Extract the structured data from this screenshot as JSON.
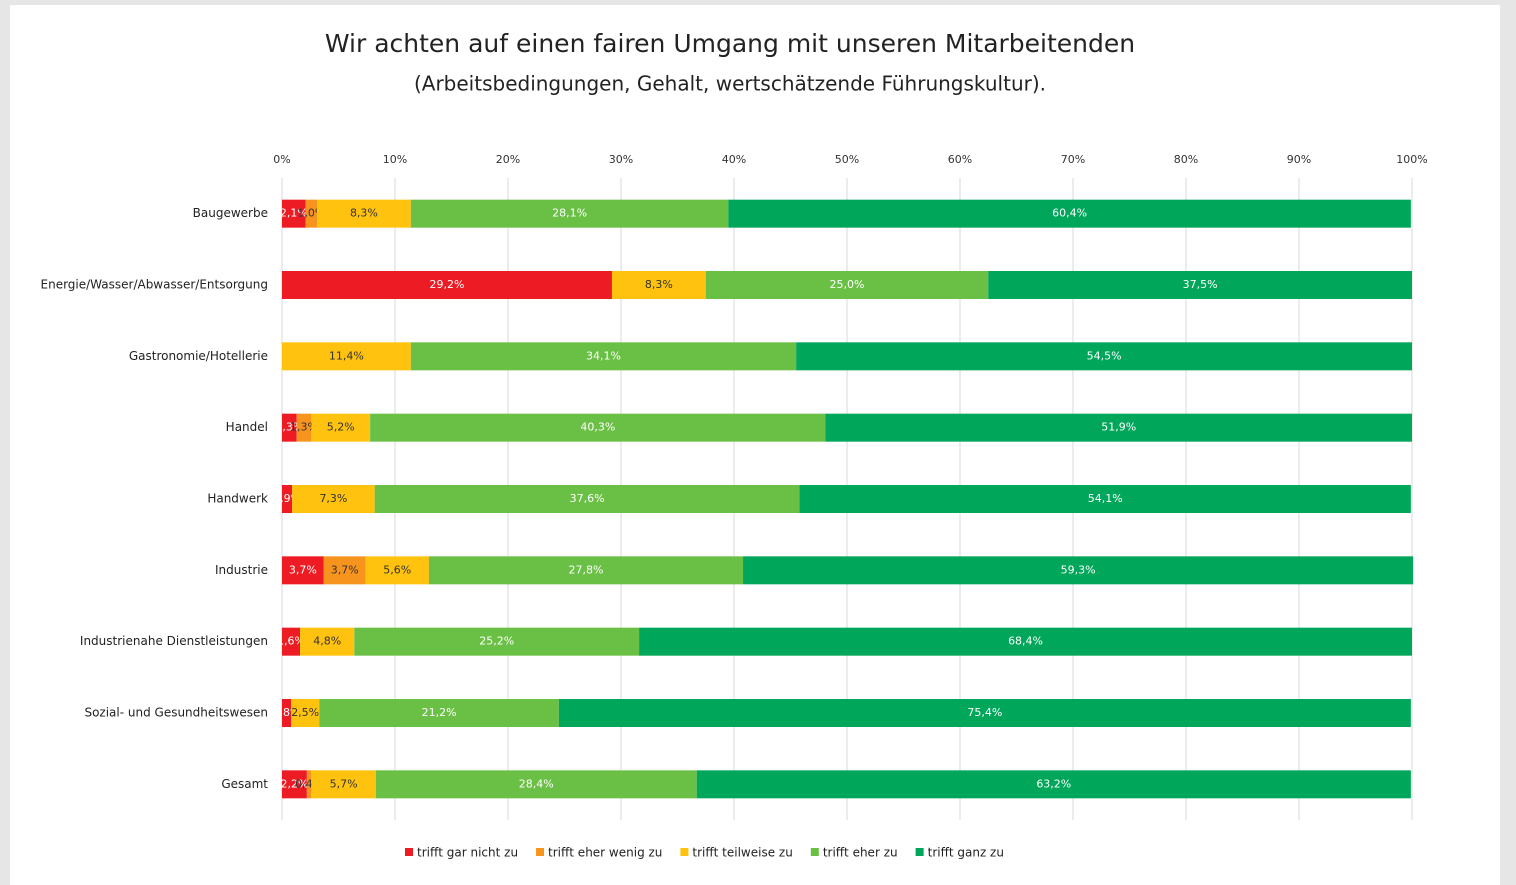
{
  "chart_data": {
    "type": "stacked-bar-horizontal",
    "title": "Wir achten auf einen fairen Umgang mit unseren Mitarbeitenden",
    "subtitle": "(Arbeitsbedingungen, Gehalt, wertschätzende Führungskultur).",
    "categories": [
      "Baugewerbe",
      "Energie/Wasser/Abwasser/Entsorgung",
      "Gastronomie/Hotellerie",
      "Handel",
      "Handwerk",
      "Industrie",
      "Industrienahe Dienstleistungen",
      "Sozial- und Gesundheitswesen",
      "Gesamt"
    ],
    "series": [
      {
        "name": "trifft gar nicht zu",
        "color": "#ed1c24",
        "values": [
          2.1,
          29.2,
          null,
          1.3,
          0.9,
          3.7,
          1.6,
          0.8,
          2.2
        ],
        "value_labels": [
          "2,1%",
          "29,2%",
          null,
          "1,3%",
          "0,9%",
          "3,7%",
          "1,6%",
          "0,8%",
          "2,2%"
        ]
      },
      {
        "name": "trifft eher wenig zu",
        "color": "#f7941d",
        "values": [
          1.0,
          null,
          null,
          1.3,
          null,
          3.7,
          null,
          null,
          0.4
        ],
        "value_labels": [
          "1,0%",
          null,
          null,
          "1,3%",
          null,
          "3,7%",
          null,
          null,
          "0,4%"
        ]
      },
      {
        "name": "trifft teilweise zu",
        "color": "#ffc20e",
        "values": [
          8.3,
          8.3,
          11.4,
          5.2,
          7.3,
          5.6,
          4.8,
          2.5,
          5.7
        ],
        "value_labels": [
          "8,3%",
          "8,3%",
          "11,4%",
          "5,2%",
          "7,3%",
          "5,6%",
          "4,8%",
          "2,5%",
          "5,7%"
        ]
      },
      {
        "name": "trifft eher zu",
        "color": "#6abf45",
        "values": [
          28.1,
          25.0,
          34.1,
          40.3,
          37.6,
          27.8,
          25.2,
          21.2,
          28.4
        ],
        "value_labels": [
          "28,1%",
          "25,0%",
          "34,1%",
          "40,3%",
          "37,6%",
          "27,8%",
          "25,2%",
          "21,2%",
          "28,4%"
        ]
      },
      {
        "name": "trifft ganz zu",
        "color": "#00a65a",
        "values": [
          60.4,
          37.5,
          54.5,
          51.9,
          54.1,
          59.3,
          68.4,
          75.4,
          63.2
        ],
        "value_labels": [
          "60,4%",
          "37,5%",
          "54,5%",
          "51,9%",
          "54,1%",
          "59,3%",
          "68,4%",
          "75,4%",
          "63,2%"
        ]
      }
    ],
    "xlim": [
      0,
      100
    ],
    "xticks": [
      {
        "value": 0,
        "label": "0%"
      },
      {
        "value": 10,
        "label": "10%"
      },
      {
        "value": 20,
        "label": "20%"
      },
      {
        "value": 30,
        "label": "30%"
      },
      {
        "value": 40,
        "label": "40%"
      },
      {
        "value": 50,
        "label": "50%"
      },
      {
        "value": 60,
        "label": "60%"
      },
      {
        "value": 70,
        "label": "70%"
      },
      {
        "value": 80,
        "label": "80%"
      },
      {
        "value": 90,
        "label": "90%"
      },
      {
        "value": 100,
        "label": "100%"
      }
    ],
    "grid": true,
    "legend": "bottom"
  }
}
